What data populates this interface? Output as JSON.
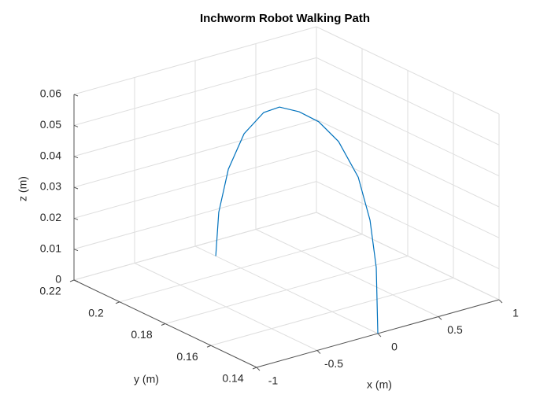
{
  "chart_data": {
    "type": "line3d",
    "title": "Inchworm Robot Walking Path",
    "xlabel": "x (m)",
    "ylabel": "y (m)",
    "zlabel": "z (m)",
    "x": [
      0,
      0,
      0,
      0,
      0,
      0,
      0,
      0,
      0,
      0,
      0,
      0,
      0
    ],
    "y": [
      0.211,
      0.2097,
      0.2055,
      0.1986,
      0.19,
      0.1831,
      0.1745,
      0.1659,
      0.1572,
      0.1486,
      0.1434,
      0.1407,
      0.14
    ],
    "z": [
      0,
      0.0146,
      0.03,
      0.0439,
      0.0538,
      0.058,
      0.0595,
      0.0593,
      0.056,
      0.0475,
      0.0354,
      0.0211,
      0
    ],
    "color": "#0072bd",
    "xlim": [
      -1,
      1
    ],
    "ylim": [
      0.14,
      0.22
    ],
    "zlim": [
      0,
      0.06
    ],
    "xticks": [
      -1,
      -0.5,
      0,
      0.5,
      1
    ],
    "yticks": [
      0.14,
      0.16,
      0.18,
      0.2,
      0.22
    ],
    "zticks": [
      0,
      0.01,
      0.02,
      0.03,
      0.04,
      0.05,
      0.06
    ],
    "grid": true
  }
}
